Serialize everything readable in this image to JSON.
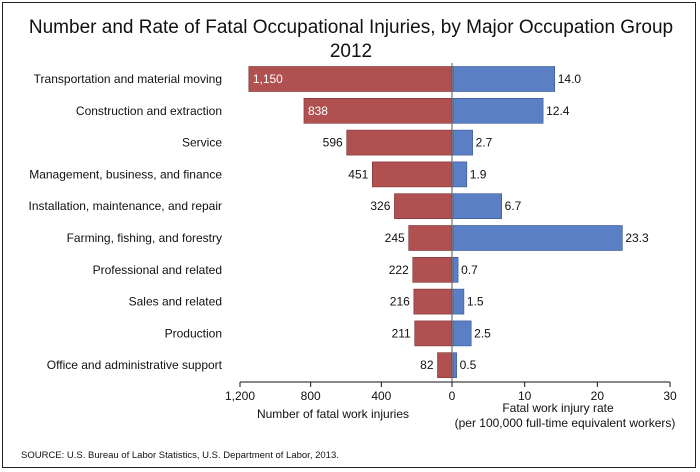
{
  "chart_data": {
    "type": "bar",
    "title": "Number and Rate of Fatal Occupational Injuries, by Major Occupation Group",
    "subtitle": "2012",
    "categories": [
      "Transportation and material moving",
      "Construction and extraction",
      "Service",
      "Management, business, and finance",
      "Installation, maintenance, and repair",
      "Farming, fishing, and forestry",
      "Professional and related",
      "Sales and related",
      "Production",
      "Office and administrative support"
    ],
    "series": [
      {
        "values": [
          1150,
          838,
          596,
          451,
          326,
          245,
          222,
          216,
          211,
          82
        ],
        "labels": [
          "1,150",
          "838",
          "596",
          "451",
          "326",
          "245",
          "222",
          "216",
          "211",
          "82"
        ],
        "color": "#b05050",
        "axis_label": "Number of fatal work injuries",
        "xlim": [
          0,
          1200
        ],
        "ticks": [
          1200,
          800,
          400,
          0
        ],
        "tick_labels": [
          "1,200",
          "800",
          "400",
          "0"
        ]
      },
      {
        "values": [
          14.0,
          12.4,
          2.7,
          1.9,
          6.7,
          23.3,
          0.7,
          1.5,
          2.5,
          0.5
        ],
        "labels": [
          "14.0",
          "12.4",
          "2.7",
          "1.9",
          "6.7",
          "23.3",
          "0.7",
          "1.5",
          "2.5",
          "0.5"
        ],
        "color": "#5b7fc4",
        "axis_label_line1": "Fatal work injury rate",
        "axis_label_line2": "(per 100,000 full-time equivalent workers)",
        "xlim": [
          0,
          30
        ],
        "ticks": [
          0,
          10,
          20,
          30
        ],
        "tick_labels": [
          "0",
          "10",
          "20",
          "30"
        ]
      }
    ],
    "source": "SOURCE: U.S. Bureau of Labor Statistics, U.S. Department of Labor, 2013."
  }
}
